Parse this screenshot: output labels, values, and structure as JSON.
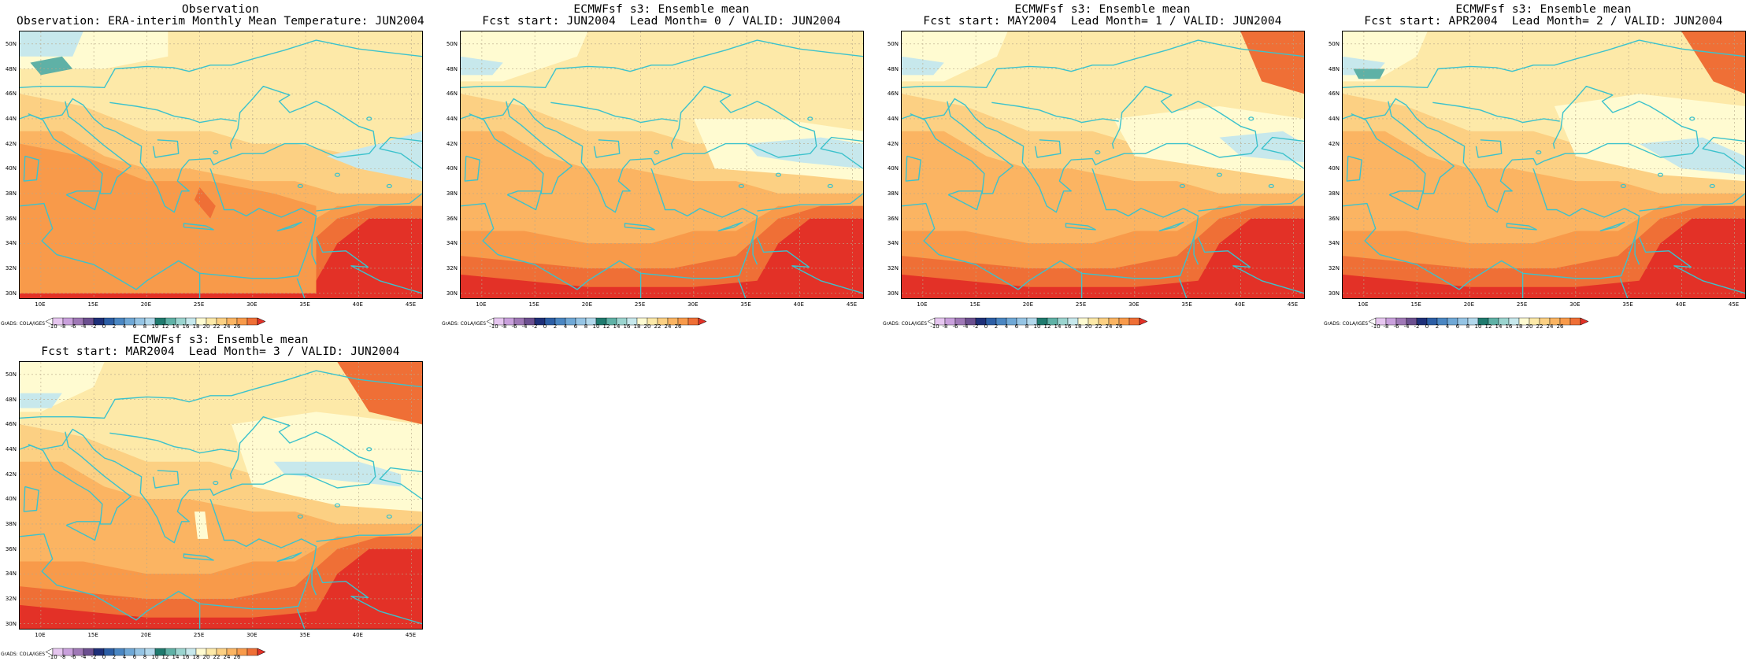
{
  "figure": {
    "panels": [
      {
        "title_line1": "Observation",
        "title_line2": "Observation: ERA-interim Monthly Mean Temperature: JUN2004",
        "variant": "obs"
      },
      {
        "title_line1": "ECMWFsf s3: Ensemble mean",
        "title_line2": "Fcst start: JUN2004  Lead Month= 0 / VALID: JUN2004",
        "variant": "lead0"
      },
      {
        "title_line1": "ECMWFsf s3: Ensemble mean",
        "title_line2": "Fcst start: MAY2004  Lead Month= 1 / VALID: JUN2004",
        "variant": "lead1"
      },
      {
        "title_line1": "ECMWFsf s3: Ensemble mean",
        "title_line2": "Fcst start: APR2004  Lead Month= 2 / VALID: JUN2004",
        "variant": "lead2"
      },
      {
        "title_line1": "ECMWFsf s3: Ensemble mean",
        "title_line2": "Fcst start: MAR2004  Lead Month= 3 / VALID: JUN2004",
        "variant": "lead3"
      }
    ],
    "lat_labels": [
      "50N",
      "48N",
      "46N",
      "44N",
      "42N",
      "40N",
      "38N",
      "36N",
      "34N",
      "32N",
      "30N"
    ],
    "lon_labels": [
      "10E",
      "15E",
      "20E",
      "25E",
      "30E",
      "35E",
      "40E",
      "45E"
    ],
    "map_extent": {
      "lon": [
        8,
        46
      ],
      "lat": [
        29.6,
        51
      ]
    },
    "colorbar": {
      "ticks": [
        "-10",
        "-8",
        "-6",
        "-4",
        "-2",
        "0",
        "2",
        "4",
        "6",
        "8",
        "10",
        "12",
        "14",
        "16",
        "18",
        "20",
        "22",
        "24",
        "26"
      ],
      "colors": [
        "#ffffff",
        "#e6c6f0",
        "#c9a0dc",
        "#9f78b6",
        "#6b4f8f",
        "#1e2f78",
        "#2c5ea5",
        "#4a86c2",
        "#6fa8d6",
        "#95c4e4",
        "#b2d8ec",
        "#1f7a6e",
        "#5fb1a6",
        "#9bd4cf",
        "#c7e8ec",
        "#fffbd1",
        "#fde9a8",
        "#fcd083",
        "#fbb462",
        "#f89a4a",
        "#ef6f36",
        "#e33127"
      ]
    },
    "credit": "GrADS: COLA/IGES",
    "coast_color": "#3cc2cc"
  }
}
